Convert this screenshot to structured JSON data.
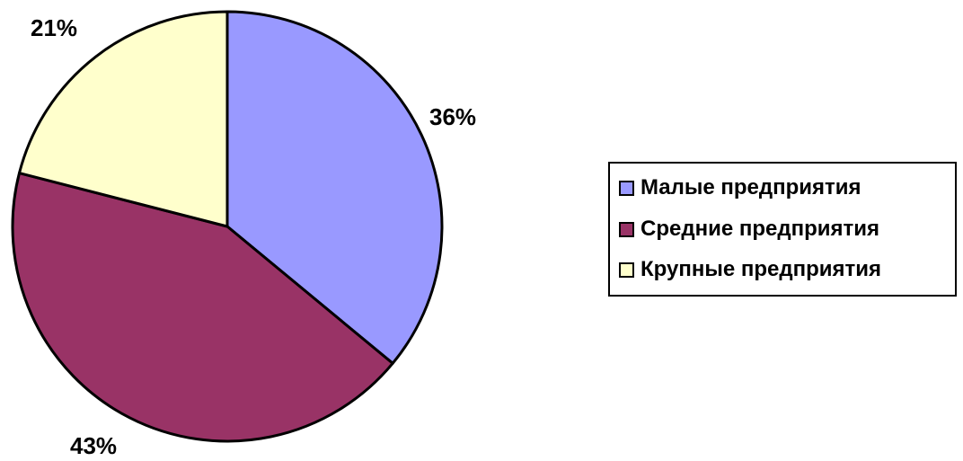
{
  "chart_data": {
    "type": "pie",
    "title": "",
    "slices": [
      {
        "label": "Малые предприятия",
        "value": 36,
        "value_label": "36%",
        "color": "#9999ff"
      },
      {
        "label": "Средние предприятия",
        "value": 43,
        "value_label": "43%",
        "color": "#993366"
      },
      {
        "label": "Крупные предприятия",
        "value": 21,
        "value_label": "21%",
        "color": "#ffffcc"
      }
    ],
    "start_angle_deg": 0,
    "direction": "clockwise",
    "legend_position": "right",
    "outline_color": "#000000"
  }
}
